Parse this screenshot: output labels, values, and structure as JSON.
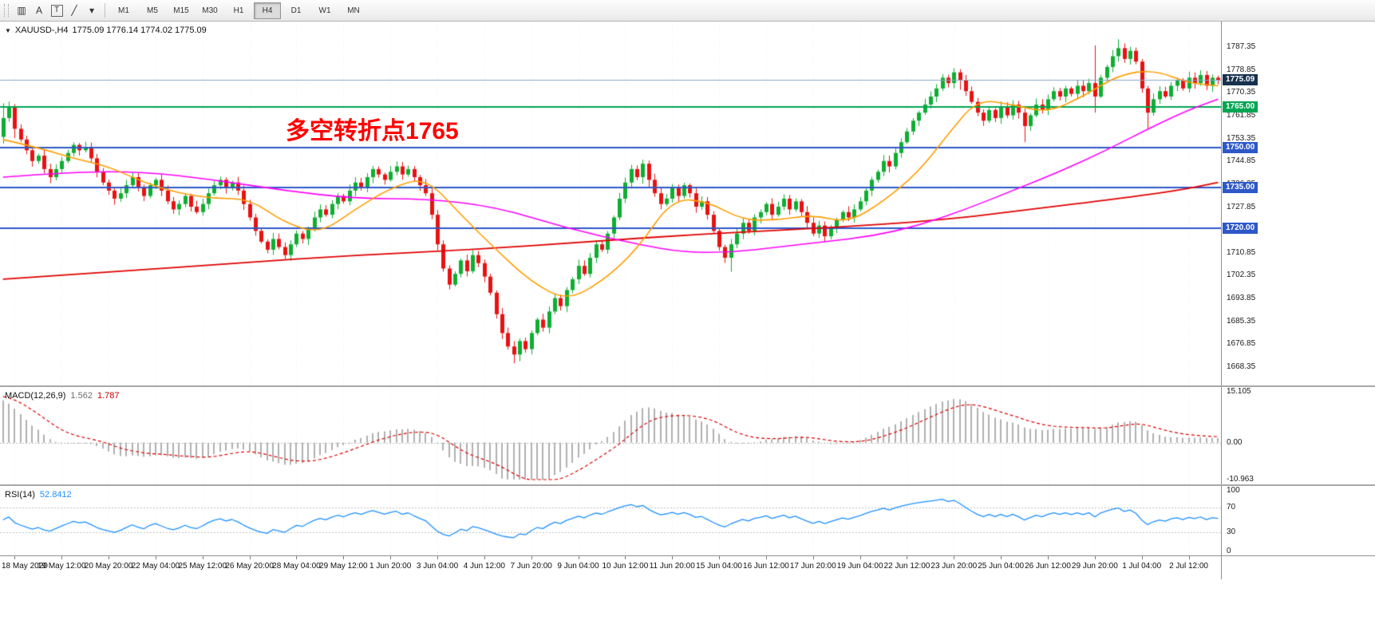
{
  "toolbar": {
    "icons": [
      {
        "name": "bar-chart-icon",
        "glyph": "▥"
      },
      {
        "name": "arrow-tool-icon",
        "glyph": "A"
      },
      {
        "name": "text-tool-icon",
        "glyph": "T",
        "boxed": true
      },
      {
        "name": "draw-line-tool-icon",
        "glyph": "╱"
      },
      {
        "name": "tool-dropdown-caret-icon",
        "glyph": "▾"
      }
    ],
    "timeframes": [
      "M1",
      "M5",
      "M15",
      "M30",
      "H1",
      "H4",
      "D1",
      "W1",
      "MN"
    ],
    "active_timeframe": "H4"
  },
  "chart": {
    "collapse_glyph": "▼",
    "title_symbol": "XAUUSD-,H4",
    "title_ohlc": "1775.09 1776.14 1774.02 1775.09",
    "annotation": {
      "text": "多空转折点1765",
      "color": "#ff0000"
    }
  },
  "colors": {
    "candle_up": "#0fae32",
    "candle_down": "#e81212",
    "grid": "#ececec",
    "price_line": "#8aa8c8",
    "zero_line": "#bbbbbb",
    "rsi_levels": "#c0c0c0"
  },
  "chart_data": {
    "type": "candlestick",
    "symbol": "XAUUSD",
    "period": "H4",
    "y_range": [
      1661.5,
      1796.9
    ],
    "price_axis_ticks": [
      1787.35,
      1778.85,
      1770.35,
      1761.85,
      1753.35,
      1744.85,
      1736.35,
      1727.85,
      1719.35,
      1710.85,
      1702.35,
      1693.85,
      1685.35,
      1676.85,
      1668.35
    ],
    "x_label_start": 2,
    "x_label_step": 8,
    "x_labels": [
      "18 May 2020",
      "19 May 12:00",
      "20 May 20:00",
      "22 May 04:00",
      "25 May 12:00",
      "26 May 20:00",
      "28 May 04:00",
      "29 May 12:00",
      "1 Jun 20:00",
      "3 Jun 04:00",
      "4 Jun 12:00",
      "7 Jun 20:00",
      "9 Jun 04:00",
      "10 Jun 12:00",
      "11 Jun 20:00",
      "15 Jun 04:00",
      "16 Jun 12:00",
      "17 Jun 20:00",
      "19 Jun 04:00",
      "22 Jun 12:00",
      "23 Jun 20:00",
      "25 Jun 04:00",
      "26 Jun 12:00",
      "29 Jun 20:00",
      "1 Jul 04:00",
      "2 Jul 12:00"
    ],
    "current_price": 1775.09,
    "current_price_label": "1775.09",
    "current_price_tag_color": "#17324f",
    "hlines": [
      {
        "price": 1765.0,
        "label": "1765.00",
        "color": "#00a651"
      },
      {
        "price": 1750.0,
        "label": "1750.00",
        "color": "#2e58c8"
      },
      {
        "price": 1735.0,
        "label": "1735.00",
        "color": "#2e58c8"
      },
      {
        "price": 1720.0,
        "label": "1720.00",
        "color": "#2e58c8"
      }
    ],
    "closes": [
      1761,
      1765,
      1757,
      1753,
      1749,
      1745,
      1747,
      1742,
      1739,
      1742,
      1745,
      1748,
      1751,
      1749,
      1750,
      1746,
      1741,
      1737,
      1734,
      1731,
      1733,
      1736,
      1739,
      1735,
      1732,
      1736,
      1738,
      1734,
      1730,
      1727,
      1729,
      1732,
      1728,
      1726,
      1729,
      1733,
      1736,
      1738,
      1735,
      1737,
      1734,
      1729,
      1724,
      1719,
      1715,
      1712,
      1716,
      1713,
      1710,
      1714,
      1718,
      1716,
      1720,
      1724,
      1727,
      1725,
      1729,
      1732,
      1730,
      1734,
      1737,
      1735,
      1739,
      1742,
      1740,
      1738,
      1741,
      1743,
      1740,
      1742,
      1739,
      1736,
      1733,
      1725,
      1714,
      1705,
      1699,
      1703,
      1708,
      1704,
      1710,
      1707,
      1702,
      1696,
      1688,
      1681,
      1676,
      1673,
      1678,
      1675,
      1681,
      1686,
      1683,
      1689,
      1694,
      1691,
      1697,
      1701,
      1706,
      1703,
      1709,
      1714,
      1712,
      1718,
      1724,
      1731,
      1737,
      1742,
      1739,
      1744,
      1738,
      1733,
      1729,
      1731,
      1735,
      1732,
      1736,
      1733,
      1728,
      1730,
      1725,
      1719,
      1713,
      1709,
      1714,
      1718,
      1722,
      1719,
      1724,
      1726,
      1729,
      1725,
      1728,
      1731,
      1727,
      1730,
      1726,
      1722,
      1718,
      1721,
      1717,
      1720,
      1723,
      1726,
      1724,
      1727,
      1730,
      1734,
      1738,
      1741,
      1745,
      1743,
      1748,
      1752,
      1756,
      1760,
      1763,
      1766,
      1769,
      1772,
      1776,
      1774,
      1778,
      1775,
      1771,
      1767,
      1763,
      1760,
      1764,
      1761,
      1765,
      1762,
      1766,
      1763,
      1758,
      1762,
      1766,
      1764,
      1768,
      1771,
      1769,
      1772,
      1770,
      1773,
      1771,
      1774,
      1769,
      1776,
      1780,
      1784,
      1787,
      1783,
      1786,
      1782,
      1772,
      1763,
      1768,
      1771,
      1769,
      1773,
      1775,
      1772,
      1776,
      1774,
      1777,
      1773,
      1776,
      1775.09
    ],
    "candle_overrides": {
      "0": [
        1754,
        1766.5,
        1751.5,
        1761
      ],
      "2": [
        1765,
        1766.2,
        1753.5,
        1757
      ],
      "87": [
        1676,
        1678,
        1669.8,
        1673
      ],
      "88": [
        1673,
        1679,
        1670.5,
        1678
      ],
      "109": [
        1739,
        1745.5,
        1736.5,
        1744
      ],
      "110": [
        1744,
        1745.2,
        1735,
        1738
      ],
      "124": [
        1709,
        1716,
        1703.8,
        1714
      ],
      "162": [
        1774,
        1779.6,
        1772,
        1778
      ],
      "163": [
        1778,
        1779.2,
        1771.5,
        1775
      ],
      "174": [
        1763,
        1764.5,
        1752,
        1758
      ],
      "186": [
        1774,
        1788,
        1763,
        1769
      ],
      "190": [
        1784,
        1790.3,
        1782,
        1787
      ],
      "195": [
        1772,
        1773,
        1757,
        1763
      ],
      "207": [
        1776,
        1776.8,
        1773.5,
        1775.09
      ]
    },
    "ma_lines": [
      {
        "name": "ma-slow",
        "color": "#e00000",
        "width": 1.8,
        "anchors": [
          [
            0,
            1701
          ],
          [
            20,
            1704
          ],
          [
            40,
            1707
          ],
          [
            60,
            1710
          ],
          [
            80,
            1712
          ],
          [
            100,
            1715
          ],
          [
            120,
            1718
          ],
          [
            140,
            1720
          ],
          [
            160,
            1723
          ],
          [
            175,
            1727
          ],
          [
            190,
            1731
          ],
          [
            200,
            1734
          ],
          [
            207,
            1737
          ]
        ]
      },
      {
        "name": "ma-mid",
        "color": "#ff00ff",
        "width": 1.6,
        "anchors": [
          [
            0,
            1739
          ],
          [
            12,
            1741
          ],
          [
            24,
            1741
          ],
          [
            36,
            1738
          ],
          [
            48,
            1734
          ],
          [
            60,
            1731
          ],
          [
            72,
            1731
          ],
          [
            84,
            1728
          ],
          [
            96,
            1720
          ],
          [
            108,
            1714
          ],
          [
            116,
            1711
          ],
          [
            124,
            1711
          ],
          [
            132,
            1713
          ],
          [
            140,
            1715
          ],
          [
            148,
            1717
          ],
          [
            156,
            1721
          ],
          [
            164,
            1727
          ],
          [
            172,
            1734
          ],
          [
            180,
            1741
          ],
          [
            188,
            1749
          ],
          [
            196,
            1758
          ],
          [
            202,
            1764
          ],
          [
            207,
            1768
          ]
        ]
      },
      {
        "name": "ma-fast",
        "color": "#ff9d00",
        "width": 1.6,
        "anchors": [
          [
            0,
            1753
          ],
          [
            6,
            1750
          ],
          [
            12,
            1746
          ],
          [
            18,
            1743
          ],
          [
            24,
            1737
          ],
          [
            30,
            1733
          ],
          [
            36,
            1731
          ],
          [
            42,
            1731
          ],
          [
            48,
            1722
          ],
          [
            54,
            1718
          ],
          [
            60,
            1727
          ],
          [
            66,
            1735
          ],
          [
            72,
            1739
          ],
          [
            78,
            1725
          ],
          [
            84,
            1712
          ],
          [
            90,
            1700
          ],
          [
            96,
            1693
          ],
          [
            102,
            1700
          ],
          [
            108,
            1712
          ],
          [
            114,
            1731
          ],
          [
            120,
            1730
          ],
          [
            126,
            1723
          ],
          [
            132,
            1723
          ],
          [
            138,
            1725
          ],
          [
            144,
            1722
          ],
          [
            150,
            1730
          ],
          [
            156,
            1741
          ],
          [
            161,
            1755
          ],
          [
            166,
            1768
          ],
          [
            172,
            1766
          ],
          [
            178,
            1763
          ],
          [
            184,
            1769
          ],
          [
            190,
            1777
          ],
          [
            196,
            1779
          ],
          [
            202,
            1774
          ],
          [
            207,
            1773
          ]
        ]
      }
    ],
    "macd": {
      "label": "MACD(12,26,9)",
      "value_hist": "1.562",
      "value_signal": "1.787",
      "hist_color": "#b0b0b0",
      "signal_color": "#dd0000",
      "seed_fast": 1766,
      "seed_slow": 1752,
      "seed_signal": 14,
      "ticks": [
        {
          "v": 15.105,
          "label": "15.105"
        },
        {
          "v": 0,
          "label": "0.00"
        },
        {
          "v": -10.963,
          "label": "-10.963"
        }
      ]
    },
    "rsi": {
      "label": "RSI(14)",
      "value": "52.8412",
      "color": "#1e90ff",
      "ticks": [
        {
          "v": 100,
          "label": "100"
        },
        {
          "v": 70,
          "label": "70"
        },
        {
          "v": 30,
          "label": "30"
        },
        {
          "v": 0,
          "label": "0"
        }
      ]
    }
  }
}
